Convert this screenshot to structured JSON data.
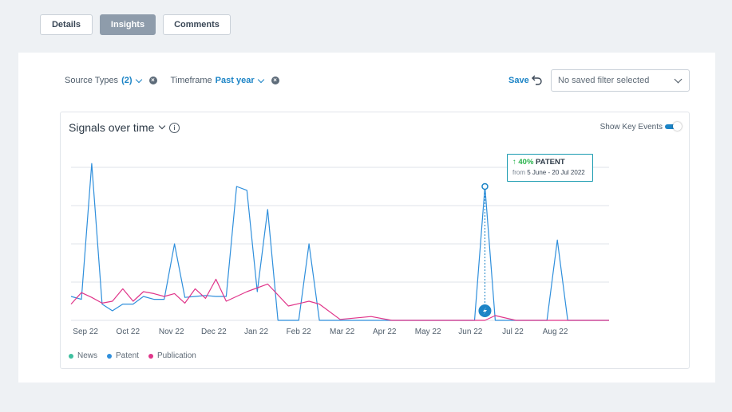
{
  "tabs": [
    {
      "label": "Details",
      "active": false
    },
    {
      "label": "Insights",
      "active": true
    },
    {
      "label": "Comments",
      "active": false
    }
  ],
  "filters": {
    "source_types": {
      "label": "Source Types",
      "value": "(2)"
    },
    "timeframe": {
      "label": "Timeframe",
      "value": "Past year"
    }
  },
  "save_label": "Save",
  "saved_filter_placeholder": "No saved filter selected",
  "chart_title": "Signals over time",
  "show_key_events_label": "Show Key Events",
  "show_key_events_on": true,
  "tooltip": {
    "pct": "40%",
    "type": "PATENT",
    "from_label": "from",
    "dates": "5 June - 20 Jul 2022"
  },
  "colors": {
    "news": "#3fbf9f",
    "patent": "#2f8fdc",
    "publication": "#e0358a",
    "accent": "#1c84c6"
  },
  "chart_data": {
    "type": "line",
    "title": "Signals over time",
    "ylim": [
      0,
      8000
    ],
    "yticks": [
      "0",
      "2.0 K",
      "4.0 K",
      "6.0 K",
      "8.0 K"
    ],
    "ytick_values": [
      0,
      2000,
      4000,
      6000,
      8000
    ],
    "x_tick_labels": [
      "Sep 22",
      "Oct 22",
      "Nov 22",
      "Dec 22",
      "Jan 22",
      "Feb 22",
      "Mar 22",
      "Apr 22",
      "May 22",
      "Jun 22",
      "Jul 22",
      "Aug 22"
    ],
    "x_domain": [
      0,
      52
    ],
    "x_tick_positions": [
      1.4,
      5.5,
      9.7,
      13.8,
      17.9,
      22.0,
      26.2,
      30.3,
      34.5,
      38.6,
      42.7,
      46.8
    ],
    "grid": true,
    "legend": "bottom-left",
    "series": [
      {
        "name": "News",
        "key": "news",
        "points": []
      },
      {
        "name": "Patent",
        "key": "patent",
        "points": [
          [
            0,
            1250
          ],
          [
            1,
            1100
          ],
          [
            2,
            8200
          ],
          [
            3,
            850
          ],
          [
            4,
            500
          ],
          [
            5,
            850
          ],
          [
            6,
            850
          ],
          [
            7,
            1250
          ],
          [
            8,
            1100
          ],
          [
            9,
            1100
          ],
          [
            10,
            4000
          ],
          [
            11,
            1200
          ],
          [
            12,
            1250
          ],
          [
            13,
            1300
          ],
          [
            14,
            1250
          ],
          [
            15,
            1250
          ],
          [
            16,
            7000
          ],
          [
            17,
            6800
          ],
          [
            18,
            1500
          ],
          [
            19,
            5800
          ],
          [
            20,
            0
          ],
          [
            21,
            0
          ],
          [
            22,
            0
          ],
          [
            23,
            4000
          ],
          [
            24,
            0
          ],
          [
            25,
            0
          ],
          [
            26,
            0
          ],
          [
            27,
            0
          ],
          [
            28,
            0
          ],
          [
            29,
            0
          ],
          [
            30,
            0
          ],
          [
            31,
            0
          ],
          [
            32,
            0
          ],
          [
            33,
            0
          ],
          [
            34,
            0
          ],
          [
            35,
            0
          ],
          [
            36,
            0
          ],
          [
            37,
            0
          ],
          [
            38,
            0
          ],
          [
            39,
            0
          ],
          [
            40,
            7000
          ],
          [
            41,
            0
          ],
          [
            42,
            0
          ],
          [
            43,
            0
          ],
          [
            44,
            0
          ],
          [
            45,
            0
          ],
          [
            46,
            0
          ],
          [
            47,
            4200
          ],
          [
            48,
            0
          ],
          [
            49,
            0
          ],
          [
            50,
            0
          ],
          [
            51,
            0
          ],
          [
            52,
            0
          ]
        ]
      },
      {
        "name": "Publication",
        "key": "publication",
        "points": [
          [
            0,
            850
          ],
          [
            1,
            1450
          ],
          [
            2,
            1200
          ],
          [
            3,
            900
          ],
          [
            4,
            1000
          ],
          [
            5,
            1650
          ],
          [
            6,
            1000
          ],
          [
            7,
            1500
          ],
          [
            8,
            1400
          ],
          [
            9,
            1250
          ],
          [
            10,
            1400
          ],
          [
            11,
            900
          ],
          [
            12,
            1650
          ],
          [
            13,
            1150
          ],
          [
            14,
            2150
          ],
          [
            15,
            1000
          ],
          [
            17,
            1500
          ],
          [
            19,
            1900
          ],
          [
            21,
            750
          ],
          [
            23,
            1000
          ],
          [
            24,
            850
          ],
          [
            26,
            50
          ],
          [
            29,
            200
          ],
          [
            31,
            0
          ],
          [
            40,
            0
          ],
          [
            41,
            250
          ],
          [
            43,
            0
          ],
          [
            52,
            0
          ]
        ]
      }
    ],
    "key_event": {
      "x": 40,
      "y": 7000,
      "label": "PATENT",
      "change": "40%"
    }
  }
}
